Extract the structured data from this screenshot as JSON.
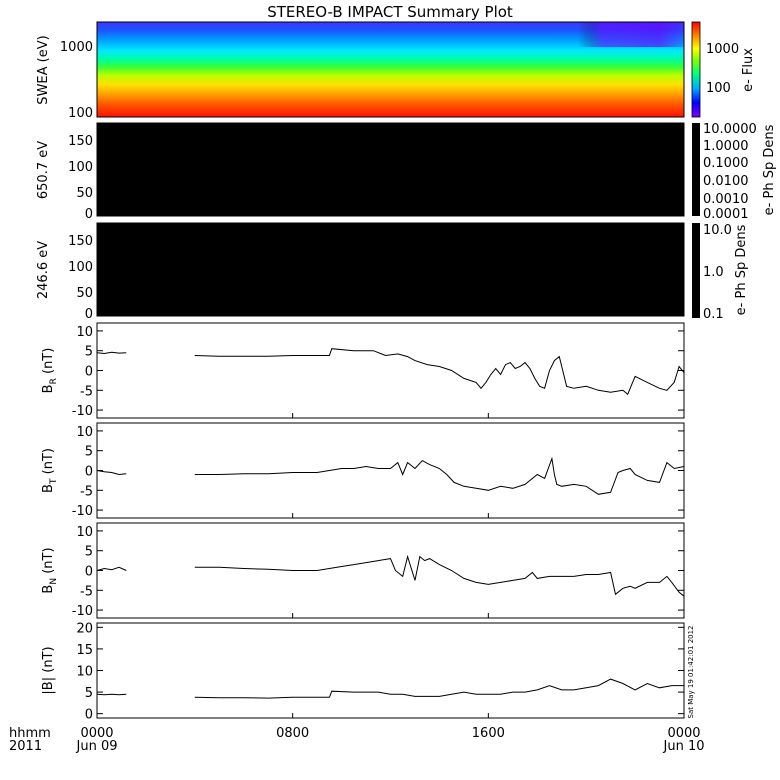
{
  "title": "STEREO-B IMPACT Summary Plot",
  "stamp": "Sat May 19 01:42:01 2012",
  "xaxis": {
    "row1_label": "hhmm",
    "row2_label": "2011",
    "ticks": [
      {
        "t": 0,
        "top": "0000",
        "bottom": "Jun 09"
      },
      {
        "t": 8,
        "top": "0800",
        "bottom": ""
      },
      {
        "t": 16,
        "top": "1600",
        "bottom": ""
      },
      {
        "t": 24,
        "top": "0000",
        "bottom": "Jun 10"
      }
    ],
    "range_hours": [
      0,
      24
    ]
  },
  "colors": {
    "line": "#000000",
    "rainbow": [
      "#ff0000",
      "#ff8000",
      "#ffff00",
      "#00ff00",
      "#00ffff",
      "#0080ff",
      "#0000ff",
      "#8000ff"
    ]
  },
  "chart_data": [
    {
      "type": "heatmap",
      "ylabel": "SWEA (eV)",
      "yscale": "log",
      "ylim": [
        95,
        2000
      ],
      "yticks": [
        "1000",
        "100"
      ],
      "colorbar": {
        "label": "e- Flux",
        "scale": "log",
        "ticks": [
          "1000",
          "100"
        ]
      }
    },
    {
      "type": "heatmap",
      "ylabel": "650.7 eV",
      "ylim": [
        0,
        180
      ],
      "yticks": [
        "150",
        "100",
        "50",
        "0"
      ],
      "values_note": "",
      "colorbar": {
        "label": "e- Ph Sp Dens",
        "scale": "log",
        "ticks": [
          "10.0000",
          "1.0000",
          "0.1000",
          "0.0100",
          "0.0010",
          "0.0001"
        ]
      }
    },
    {
      "type": "heatmap",
      "ylabel": "246.6 eV",
      "ylim": [
        0,
        180
      ],
      "yticks": [
        "150",
        "100",
        "50",
        "0"
      ],
      "colorbar": {
        "label": "e- Ph Sp Dens",
        "scale": "log",
        "ticks": [
          "10.0",
          "1.0",
          "0.1"
        ]
      }
    },
    {
      "type": "line",
      "ylabel_main": "B",
      "ylabel_sub": "R",
      "ylabel_unit": " (nT)",
      "ylim": [
        -12,
        12
      ],
      "yticks": [
        "10",
        "5",
        "0",
        "-5",
        "-10"
      ],
      "segments": [
        {
          "x": [
            0,
            0.3,
            0.6,
            0.9,
            1.2
          ],
          "y": [
            4.5,
            4.3,
            4.6,
            4.4,
            4.5
          ]
        },
        {
          "x": [
            4.0,
            5.0,
            6.0,
            7.0,
            8.0,
            9.0,
            9.5,
            9.6,
            10.5,
            11.3,
            11.8,
            12.3,
            12.7,
            13.0,
            13.5,
            14.0,
            14.5,
            15.0,
            15.5,
            15.7,
            15.9,
            16.1,
            16.3,
            16.5,
            16.7,
            16.9,
            17.1,
            17.3,
            17.5,
            17.7,
            17.9,
            18.1,
            18.3,
            18.5,
            18.7,
            18.9,
            19.2,
            19.5,
            20.0,
            20.5,
            21.0,
            21.5,
            21.7,
            22.0,
            22.5,
            23.0,
            23.3,
            23.6,
            23.8,
            24.0
          ],
          "y": [
            3.8,
            3.6,
            3.6,
            3.6,
            3.8,
            3.8,
            3.8,
            5.5,
            5.0,
            5.0,
            3.8,
            4.2,
            3.5,
            2.5,
            1.5,
            1.0,
            0.0,
            -2.0,
            -3.0,
            -4.5,
            -3.0,
            -1.0,
            0.5,
            -1.0,
            1.5,
            2.0,
            0.5,
            1.0,
            2.0,
            0.5,
            -2.0,
            -4.0,
            -4.5,
            0.0,
            2.5,
            3.5,
            -4.0,
            -4.5,
            -4.0,
            -5.0,
            -5.5,
            -5.0,
            -6.0,
            -1.5,
            -3.0,
            -4.5,
            -5.0,
            -3.0,
            1.0,
            -0.5
          ]
        }
      ]
    },
    {
      "type": "line",
      "ylabel_main": "B",
      "ylabel_sub": "T",
      "ylabel_unit": " (nT)",
      "ylim": [
        -12,
        12
      ],
      "yticks": [
        "10",
        "5",
        "0",
        "-5",
        "-10"
      ],
      "segments": [
        {
          "x": [
            0,
            0.3,
            0.6,
            0.9,
            1.2
          ],
          "y": [
            0.0,
            -0.3,
            -0.5,
            -1.0,
            -0.8
          ]
        },
        {
          "x": [
            4.0,
            5.0,
            6.0,
            7.0,
            8.0,
            9.0,
            9.5,
            10.0,
            10.5,
            11.0,
            11.5,
            12.0,
            12.3,
            12.5,
            12.7,
            13.0,
            13.3,
            13.6,
            14.0,
            14.3,
            14.6,
            15.0,
            15.5,
            16.0,
            16.5,
            17.0,
            17.5,
            18.0,
            18.3,
            18.6,
            18.7,
            18.8,
            19.0,
            19.5,
            20.0,
            20.5,
            21.0,
            21.3,
            21.5,
            21.8,
            22.0,
            22.5,
            23.0,
            23.3,
            23.6,
            24.0
          ],
          "y": [
            -1.0,
            -1.0,
            -0.8,
            -0.8,
            -0.5,
            -0.5,
            0.0,
            0.5,
            0.5,
            1.0,
            0.5,
            0.5,
            2.0,
            -1.0,
            2.0,
            0.5,
            2.5,
            1.5,
            0.5,
            -1.0,
            -3.0,
            -4.0,
            -4.5,
            -5.0,
            -4.0,
            -4.5,
            -3.5,
            -1.0,
            -2.0,
            3.0,
            -1.0,
            -3.5,
            -4.0,
            -3.5,
            -4.0,
            -6.0,
            -5.5,
            -0.5,
            0.0,
            0.5,
            -1.0,
            -2.5,
            -3.0,
            2.0,
            0.5,
            1.0
          ]
        }
      ]
    },
    {
      "type": "line",
      "ylabel_main": "B",
      "ylabel_sub": "N",
      "ylabel_unit": " (nT)",
      "ylim": [
        -12,
        12
      ],
      "yticks": [
        "10",
        "5",
        "0",
        "-5",
        "-10"
      ],
      "segments": [
        {
          "x": [
            0,
            0.3,
            0.6,
            0.9,
            1.2
          ],
          "y": [
            0.0,
            0.5,
            0.2,
            0.8,
            0.0
          ]
        },
        {
          "x": [
            4.0,
            5.0,
            6.0,
            7.0,
            8.0,
            9.0,
            9.5,
            10.0,
            10.5,
            11.0,
            11.5,
            12.0,
            12.2,
            12.5,
            12.7,
            13.0,
            13.2,
            13.4,
            13.6,
            14.0,
            14.5,
            15.0,
            15.5,
            16.0,
            16.5,
            17.0,
            17.5,
            17.8,
            18.0,
            18.5,
            19.0,
            19.5,
            20.0,
            20.5,
            21.0,
            21.2,
            21.5,
            21.8,
            22.0,
            22.5,
            23.0,
            23.3,
            23.5,
            23.8,
            24.0
          ],
          "y": [
            0.8,
            0.8,
            0.5,
            0.3,
            0.0,
            0.0,
            0.5,
            1.0,
            1.5,
            2.0,
            2.5,
            3.0,
            0.0,
            -1.5,
            3.5,
            -2.5,
            3.5,
            2.5,
            3.0,
            1.5,
            0.0,
            -2.0,
            -3.0,
            -3.5,
            -3.0,
            -2.5,
            -2.0,
            -0.5,
            -2.0,
            -1.5,
            -1.5,
            -1.5,
            -1.0,
            -1.0,
            -0.5,
            -6.0,
            -4.5,
            -4.0,
            -4.5,
            -3.0,
            -3.0,
            -1.5,
            -3.0,
            -5.5,
            -6.5
          ]
        }
      ]
    },
    {
      "type": "line",
      "ylabel_main": "|B|",
      "ylabel_sub": "",
      "ylabel_unit": " (nT)",
      "ylim": [
        -1,
        21
      ],
      "yticks": [
        "20",
        "15",
        "10",
        "5",
        "0"
      ],
      "segments": [
        {
          "x": [
            0,
            0.3,
            0.6,
            0.9,
            1.2
          ],
          "y": [
            4.5,
            4.4,
            4.5,
            4.4,
            4.5
          ]
        },
        {
          "x": [
            4.0,
            5.0,
            6.0,
            7.0,
            8.0,
            9.0,
            9.5,
            9.6,
            10.5,
            11.5,
            12.0,
            12.5,
            13.0,
            13.5,
            14.0,
            14.5,
            15.0,
            15.5,
            16.0,
            16.5,
            17.0,
            17.5,
            18.0,
            18.5,
            19.0,
            19.5,
            20.0,
            20.5,
            21.0,
            21.5,
            22.0,
            22.5,
            23.0,
            23.5,
            24.0
          ],
          "y": [
            3.8,
            3.7,
            3.7,
            3.6,
            3.8,
            3.8,
            3.8,
            5.2,
            5.0,
            5.0,
            4.5,
            4.5,
            4.0,
            4.0,
            4.0,
            4.5,
            5.0,
            4.5,
            4.5,
            4.5,
            5.0,
            5.0,
            5.5,
            6.5,
            5.5,
            5.5,
            6.0,
            6.5,
            8.0,
            7.0,
            5.5,
            7.0,
            6.0,
            6.5,
            6.5
          ]
        }
      ]
    }
  ]
}
